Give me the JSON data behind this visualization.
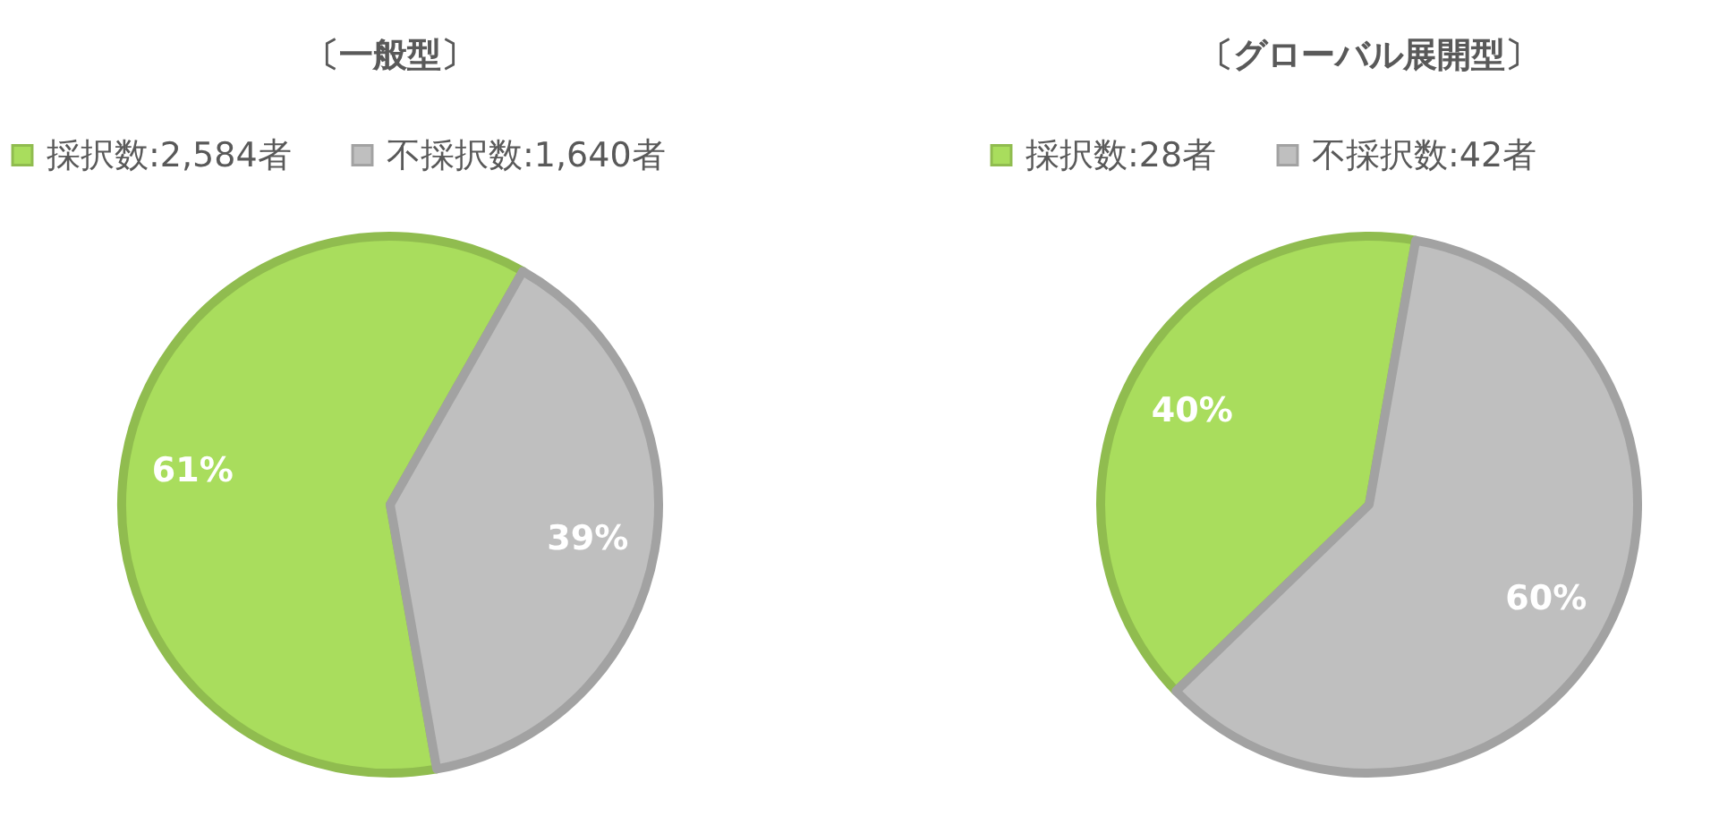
{
  "chart_data": [
    {
      "type": "pie",
      "title": "〔一般型〕",
      "categories": [
        "採択数:2,584者",
        "不採択数:1,640者"
      ],
      "values": [
        61,
        39
      ],
      "value_labels": [
        "61%",
        "39%"
      ],
      "colors": [
        "#a9dd5d",
        "#bfbfbf"
      ],
      "legend": "top"
    },
    {
      "type": "pie",
      "title": "〔グローバル展開型〕",
      "categories": [
        "採択数:28者",
        "不採択数:42者"
      ],
      "values": [
        40,
        60
      ],
      "value_labels": [
        "40%",
        "60%"
      ],
      "colors": [
        "#a9dd5d",
        "#bfbfbf"
      ],
      "legend": "top"
    }
  ]
}
